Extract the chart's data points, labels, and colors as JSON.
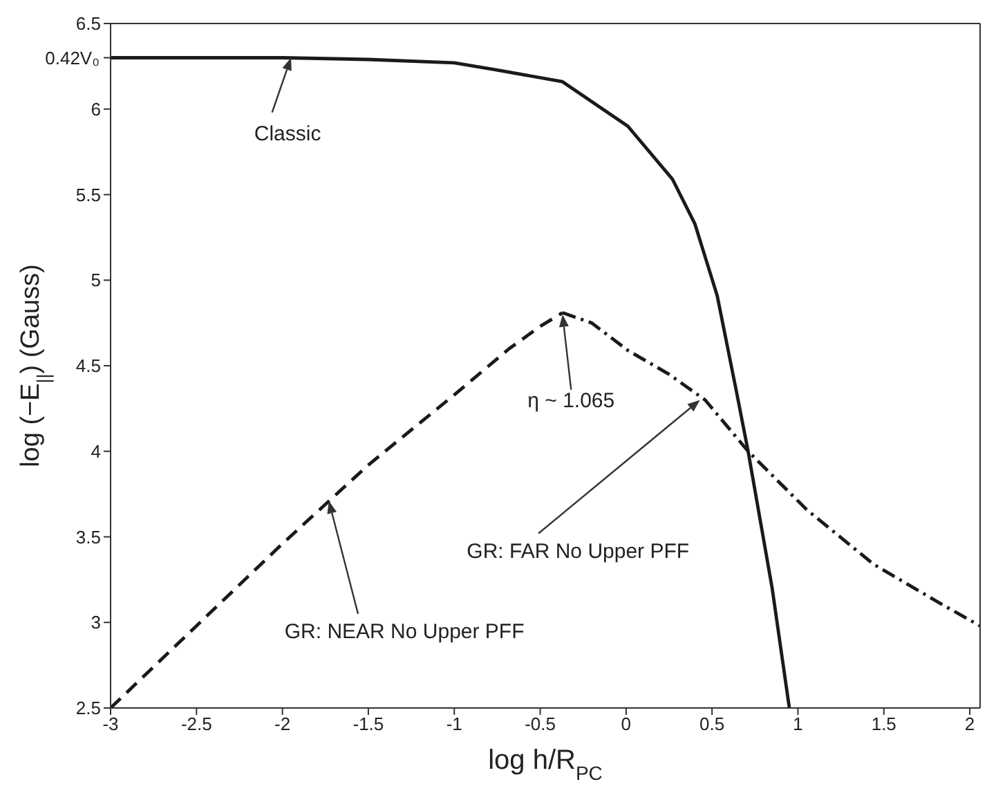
{
  "chart_data": {
    "type": "line",
    "xlabel": "log h/R$_{PC}$",
    "ylabel": "log (−E$_{||}$) (Gauss)",
    "xlim": [
      -3,
      2.06
    ],
    "xticks": [
      -3,
      -2.5,
      -2,
      -1.5,
      -1,
      -0.5,
      0,
      0.5,
      1,
      1.5,
      2
    ],
    "ylim": [
      2.5,
      6.5
    ],
    "yticks": [
      2.5,
      3,
      3.5,
      4,
      4.5,
      5,
      5.5,
      6,
      {
        "value": 6.3,
        "label": null
      },
      6.5
    ],
    "grid": false,
    "legend": false,
    "marker": "none",
    "series": [
      {
        "color": "#1a1a1a",
        "line_style": "solid",
        "x": [
          -3,
          -2.5,
          -2,
          -1.5,
          -1,
          -0.76,
          -0.37,
          0.01,
          0.27,
          0.4,
          0.53,
          0.64,
          0.71,
          0.85,
          0.95
        ],
        "values": [
          6.3,
          6.3,
          6.3,
          6.29,
          6.27,
          6.23,
          6.16,
          5.9,
          5.59,
          5.33,
          4.91,
          4.36,
          4.0,
          3.2,
          2.5
        ]
      },
      {
        "color": "#1a1a1a",
        "line_style": "dashed",
        "x": [
          -3,
          -2.5,
          -2,
          -1.5,
          -1,
          -0.68,
          -0.5,
          -0.37
        ],
        "values": [
          2.5,
          2.98,
          3.46,
          3.92,
          4.33,
          4.6,
          4.73,
          4.81
        ]
      },
      {
        "color": "#1a1a1a",
        "line_style": "dashdot",
        "x": [
          -0.37,
          -0.2,
          0.01,
          0.25,
          0.46,
          0.71,
          1.05,
          1.44,
          1.83,
          2.06
        ],
        "values": [
          4.81,
          4.75,
          4.59,
          4.45,
          4.3,
          4.0,
          3.66,
          3.34,
          3.11,
          2.98
        ]
      }
    ],
    "annotations": [
      {
        "text": "Classic",
        "x": -1.95,
        "y": 6.3
      },
      {
        "text": "η ~ 1.065",
        "x": -0.37,
        "y": 4.8
      },
      {
        "text": "GR: FAR No Upper PFF",
        "x": 0.43,
        "y": 4.3
      },
      {
        "text": "GR: NEAR No Upper PFF",
        "x": -1.73,
        "y": 3.71
      },
      {
        "text": "0.42V₀",
        "x": -3,
        "y": 6.3
      }
    ]
  }
}
